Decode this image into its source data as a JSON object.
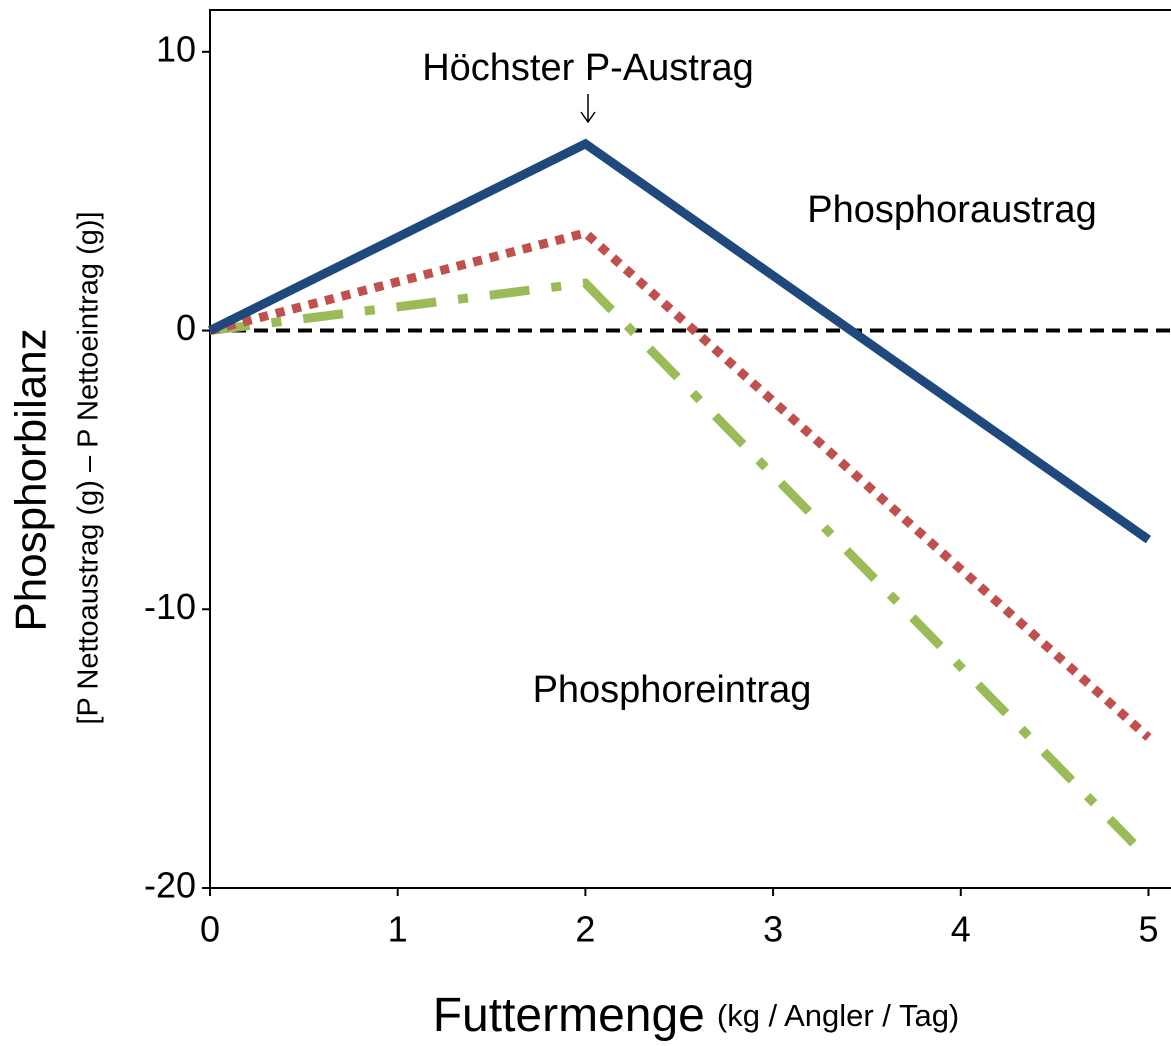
{
  "chart_data": {
    "type": "line",
    "annotations": [
      "Höchster P-Austrag",
      "Phosphoraustrag",
      "Phosphoreintrag"
    ],
    "x_label": "Futtermenge",
    "x_label_unit": "(kg / Angler / Tag)",
    "y_label": "Phosphorbilanz",
    "y_label_sub": "[P Nettoaustrag (g) – P Nettoeintrag (g)]",
    "series": [
      {
        "color": "#1f497d",
        "style": "solid",
        "x": [
          0,
          2,
          5
        ],
        "values": [
          0,
          6.7,
          -7.5
        ]
      },
      {
        "color": "#c0504d",
        "style": "dotted",
        "x": [
          0,
          2,
          5
        ],
        "values": [
          0,
          3.5,
          -14.6
        ]
      },
      {
        "color": "#9bbb59",
        "style": "dashdot",
        "x": [
          0,
          2,
          4.92
        ],
        "values": [
          0,
          1.7,
          -18.4
        ]
      }
    ],
    "reference_line": 0,
    "xlim": [
      0,
      5.12
    ],
    "xticks": [
      0,
      1,
      2,
      3,
      4,
      5
    ],
    "ylim": [
      -20,
      11.5
    ],
    "yticks": [
      -20,
      -10,
      0,
      10
    ],
    "grid": false
  }
}
